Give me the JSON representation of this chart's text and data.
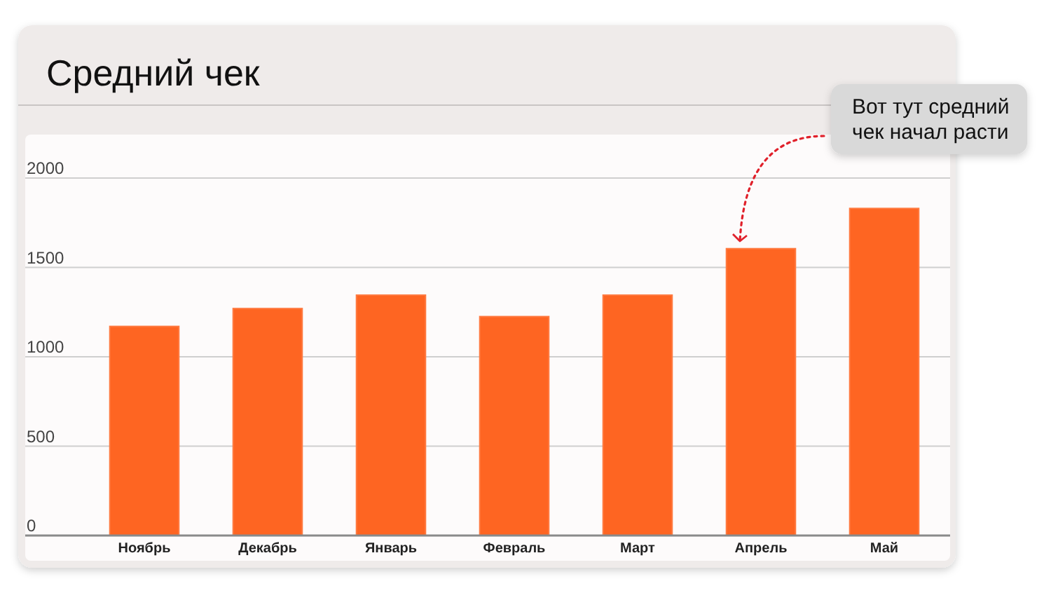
{
  "chart_data": {
    "type": "bar",
    "title": "Средний чек",
    "categories": [
      "Ноябрь",
      "Декабрь",
      "Январь",
      "Февраль",
      "Март",
      "Апрель",
      "Май"
    ],
    "values": [
      1170,
      1270,
      1345,
      1225,
      1345,
      1605,
      1830
    ],
    "color": "#fe6522",
    "ylim": [
      0,
      2000
    ],
    "yticks": [
      0,
      500,
      1000,
      1500,
      2000
    ],
    "grid": "y",
    "annotations": [
      "Вот тут средний чек начал расти"
    ]
  }
}
